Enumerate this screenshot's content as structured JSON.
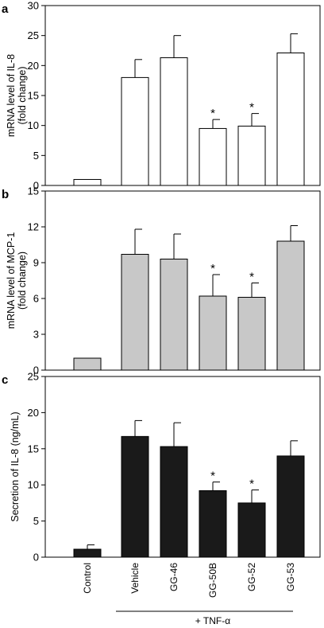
{
  "chart_data": [
    {
      "type": "bar",
      "panel_label": "a",
      "ylabel": [
        "mRNA level of IL-8",
        "(fold change)"
      ],
      "ylim": [
        0,
        30
      ],
      "yticks": [
        0,
        5,
        10,
        15,
        20,
        25,
        30
      ],
      "categories": [
        "Control",
        "Vehicle",
        "GG-46",
        "GG-50B",
        "GG-52",
        "GG-53"
      ],
      "values": [
        1.0,
        18.0,
        21.3,
        9.5,
        9.9,
        22.1
      ],
      "errors": [
        0,
        3.0,
        3.7,
        1.5,
        2.1,
        3.2
      ],
      "significant": [
        "",
        "",
        "",
        "*",
        "*",
        ""
      ],
      "bar_color": "#ffffff",
      "grid": false
    },
    {
      "type": "bar",
      "panel_label": "b",
      "ylabel": [
        "mRNA level of MCP-1",
        "(fold change)"
      ],
      "ylim": [
        0,
        15
      ],
      "yticks": [
        0,
        3,
        6,
        9,
        12,
        15
      ],
      "categories": [
        "Control",
        "Vehicle",
        "GG-46",
        "GG-50B",
        "GG-52",
        "GG-53"
      ],
      "values": [
        1.0,
        9.7,
        9.3,
        6.2,
        6.1,
        10.8
      ],
      "errors": [
        0,
        2.1,
        2.1,
        1.8,
        1.2,
        1.3
      ],
      "significant": [
        "",
        "",
        "",
        "*",
        "*",
        ""
      ],
      "bar_color": "#c8c8c8",
      "grid": false
    },
    {
      "type": "bar",
      "panel_label": "c",
      "ylabel": [
        "Secretion of IL-8 (ng/mL)"
      ],
      "ylim": [
        0,
        25
      ],
      "yticks": [
        0,
        5,
        10,
        15,
        20,
        25
      ],
      "categories": [
        "Control",
        "Vehicle",
        "GG-46",
        "GG-50B",
        "GG-52",
        "GG-53"
      ],
      "values": [
        1.1,
        16.7,
        15.3,
        9.2,
        7.5,
        14.0
      ],
      "errors": [
        0.6,
        2.2,
        3.3,
        1.2,
        1.8,
        2.1
      ],
      "significant": [
        "",
        "",
        "",
        "*",
        "*",
        ""
      ],
      "bar_color": "#1a1a1a",
      "grid": false
    }
  ],
  "x_categories": [
    "Control",
    "Vehicle",
    "GG-46",
    "GG-50B",
    "GG-52",
    "GG-53"
  ],
  "treatment_label": "+ TNF-α"
}
